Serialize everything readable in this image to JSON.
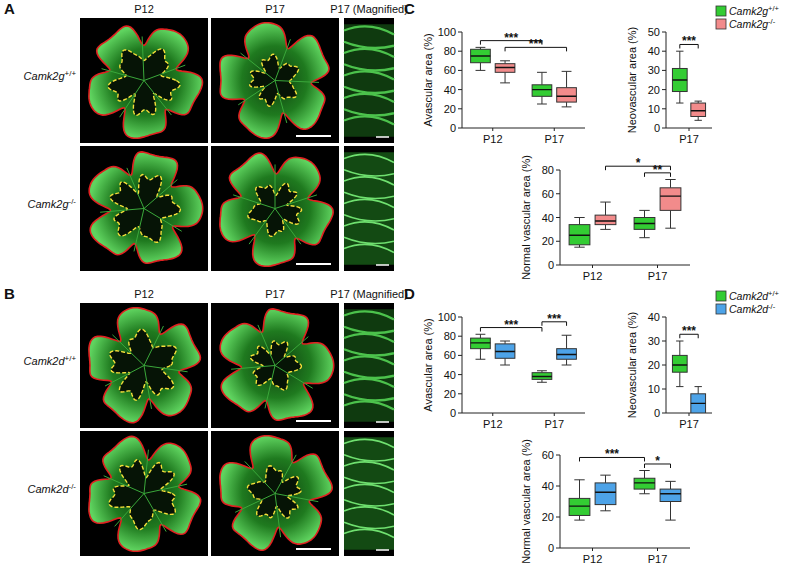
{
  "figure": {
    "panel_labels": [
      "A",
      "B",
      "C",
      "D"
    ],
    "image_panels": [
      {
        "columns": [
          "P12",
          "P17",
          "P17 (Magnified)"
        ],
        "rows": [
          "Camk2g+/+",
          "Camk2g-/-"
        ]
      },
      {
        "columns": [
          "P12",
          "P17",
          "P17 (Magnified)"
        ],
        "rows": [
          "Camk2d+/+",
          "Camk2d-/-"
        ]
      }
    ]
  },
  "chart_data": [
    {
      "type": "box",
      "ylabel": "Avascular area (%)",
      "categories": [
        "P12",
        "P17"
      ],
      "ylim": [
        0,
        100
      ],
      "yticks": [
        0,
        20,
        40,
        60,
        80,
        100
      ],
      "series": [
        {
          "name": "Camk2g+/+",
          "color": "#33cc33",
          "values": [
            {
              "min": 60,
              "q1": 68,
              "median": 75,
              "q3": 82,
              "max": 84
            },
            {
              "min": 25,
              "q1": 33,
              "median": 40,
              "q3": 45,
              "max": 58
            }
          ]
        },
        {
          "name": "Camk2g-/-",
          "color": "#f28b8b",
          "values": [
            {
              "min": 47,
              "q1": 58,
              "median": 63,
              "q3": 67,
              "max": 70
            },
            {
              "min": 22,
              "q1": 27,
              "median": 33,
              "q3": 42,
              "max": 59
            }
          ]
        }
      ],
      "annotations": [
        {
          "text": "***",
          "from": [
            "P12",
            "Camk2g+/+"
          ],
          "to": [
            "P17",
            "Camk2g+/+"
          ]
        },
        {
          "text": "***",
          "from": [
            "P12",
            "Camk2g-/-"
          ],
          "to": [
            "P17",
            "Camk2g-/-"
          ]
        }
      ]
    },
    {
      "type": "box",
      "ylabel": "Neovascular area (%)",
      "categories": [
        "P17"
      ],
      "ylim": [
        0,
        50
      ],
      "yticks": [
        0,
        10,
        20,
        30,
        40,
        50
      ],
      "legend": "top-right",
      "series": [
        {
          "name": "Camk2g+/+",
          "color": "#33cc33",
          "values": [
            {
              "min": 13,
              "q1": 19,
              "median": 25,
              "q3": 31,
              "max": 40
            }
          ]
        },
        {
          "name": "Camk2g-/-",
          "color": "#f28b8b",
          "values": [
            {
              "min": 4,
              "q1": 6,
              "median": 9,
              "q3": 13,
              "max": 14
            }
          ]
        }
      ],
      "annotations": [
        {
          "text": "***",
          "from": [
            "P17",
            "Camk2g+/+"
          ],
          "to": [
            "P17",
            "Camk2g-/-"
          ]
        }
      ]
    },
    {
      "type": "box",
      "ylabel": "Normal vascular area (%)",
      "categories": [
        "P12",
        "P17"
      ],
      "ylim": [
        0,
        80
      ],
      "yticks": [
        0,
        20,
        40,
        60,
        80
      ],
      "series": [
        {
          "name": "Camk2g+/+",
          "color": "#33cc33",
          "values": [
            {
              "min": 15,
              "q1": 17,
              "median": 25,
              "q3": 34,
              "max": 40
            },
            {
              "min": 23,
              "q1": 30,
              "median": 35,
              "q3": 40,
              "max": 46
            }
          ]
        },
        {
          "name": "Camk2g-/-",
          "color": "#f28b8b",
          "values": [
            {
              "min": 30,
              "q1": 34,
              "median": 37,
              "q3": 42,
              "max": 53
            },
            {
              "min": 31,
              "q1": 46,
              "median": 58,
              "q3": 65,
              "max": 72
            }
          ]
        }
      ],
      "annotations": [
        {
          "text": "**",
          "from": [
            "P17",
            "Camk2g+/+"
          ],
          "to": [
            "P17",
            "Camk2g-/-"
          ]
        },
        {
          "text": "*",
          "from": [
            "P12",
            "Camk2g-/-"
          ],
          "to": [
            "P17",
            "Camk2g-/-"
          ]
        }
      ]
    },
    {
      "type": "box",
      "ylabel": "Avascular area (%)",
      "categories": [
        "P12",
        "P17"
      ],
      "ylim": [
        0,
        100
      ],
      "yticks": [
        0,
        20,
        40,
        60,
        80,
        100
      ],
      "series": [
        {
          "name": "Camk2d+/+",
          "color": "#33cc33",
          "values": [
            {
              "min": 56,
              "q1": 67,
              "median": 73,
              "q3": 78,
              "max": 82
            },
            {
              "min": 32,
              "q1": 35,
              "median": 38,
              "q3": 42,
              "max": 44
            }
          ]
        },
        {
          "name": "Camk2d-/-",
          "color": "#4da3e8",
          "values": [
            {
              "min": 50,
              "q1": 57,
              "median": 64,
              "q3": 72,
              "max": 75
            },
            {
              "min": 50,
              "q1": 56,
              "median": 61,
              "q3": 67,
              "max": 81
            }
          ]
        }
      ],
      "annotations": [
        {
          "text": "***",
          "from": [
            "P12",
            "Camk2d+/+"
          ],
          "to": [
            "P17",
            "Camk2d+/+"
          ]
        },
        {
          "text": "***",
          "from": [
            "P17",
            "Camk2d+/+"
          ],
          "to": [
            "P17",
            "Camk2d-/-"
          ]
        }
      ]
    },
    {
      "type": "box",
      "ylabel": "Neovascular area (%)",
      "categories": [
        "P17"
      ],
      "ylim": [
        0,
        40
      ],
      "yticks": [
        0,
        10,
        20,
        30,
        40
      ],
      "legend": "top-right",
      "series": [
        {
          "name": "Camk2d+/+",
          "color": "#33cc33",
          "values": [
            {
              "min": 11,
              "q1": 17,
              "median": 20,
              "q3": 24,
              "max": 30
            }
          ]
        },
        {
          "name": "Camk2d-/-",
          "color": "#4da3e8",
          "values": [
            {
              "min": 0,
              "q1": 0,
              "median": 4,
              "q3": 8,
              "max": 11
            }
          ]
        }
      ],
      "annotations": [
        {
          "text": "***",
          "from": [
            "P17",
            "Camk2d+/+"
          ],
          "to": [
            "P17",
            "Camk2d-/-"
          ]
        }
      ]
    },
    {
      "type": "box",
      "ylabel": "Normal vascular area (%)",
      "categories": [
        "P12",
        "P17"
      ],
      "ylim": [
        0,
        60
      ],
      "yticks": [
        0,
        20,
        40,
        60
      ],
      "series": [
        {
          "name": "Camk2d+/+",
          "color": "#33cc33",
          "values": [
            {
              "min": 18,
              "q1": 21,
              "median": 27,
              "q3": 32,
              "max": 44
            },
            {
              "min": 35,
              "q1": 38,
              "median": 42,
              "q3": 45,
              "max": 50
            }
          ]
        },
        {
          "name": "Camk2d-/-",
          "color": "#4da3e8",
          "values": [
            {
              "min": 24,
              "q1": 28,
              "median": 36,
              "q3": 42,
              "max": 47
            },
            {
              "min": 18,
              "q1": 30,
              "median": 35,
              "q3": 38,
              "max": 43
            }
          ]
        }
      ],
      "annotations": [
        {
          "text": "*",
          "from": [
            "P17",
            "Camk2d+/+"
          ],
          "to": [
            "P17",
            "Camk2d-/-"
          ]
        },
        {
          "text": "***",
          "from": [
            "P12",
            "Camk2d+/+"
          ],
          "to": [
            "P17",
            "Camk2d+/+"
          ]
        }
      ]
    }
  ]
}
